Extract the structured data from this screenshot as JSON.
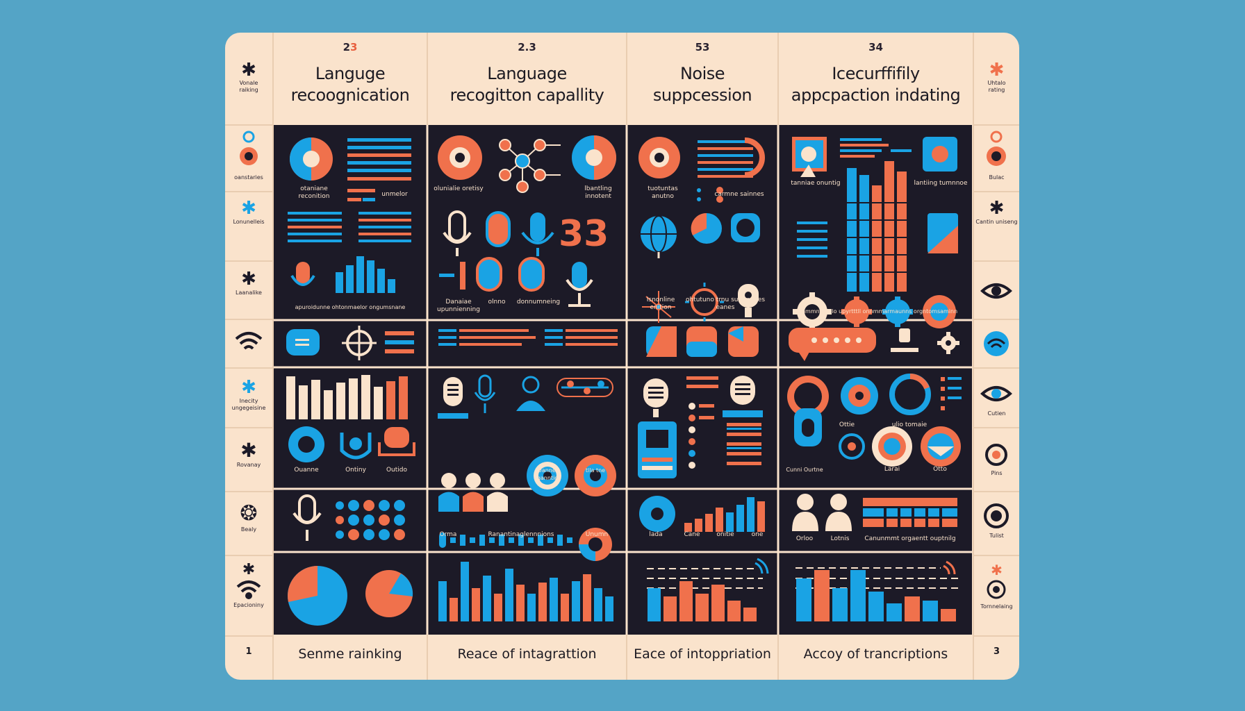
{
  "colors": {
    "background": "#54a4c6",
    "board": "#fae3cc",
    "panel": "#1c1a27",
    "blue": "#1aa3e4",
    "orange": "#f0714c",
    "cream": "#fae3cc"
  },
  "columns": [
    {
      "number_prefix": "2",
      "number_accent": "3",
      "title_line1": "Languge",
      "title_line2": "recoognication",
      "footer": "Senme rainking"
    },
    {
      "number_prefix": "2.3",
      "number_accent": "",
      "title_line1": "Language",
      "title_line2": "recogitton capallity",
      "footer": "Reace of intagrattion"
    },
    {
      "number_prefix": "53",
      "number_accent": "",
      "title_line1": "Noise",
      "title_line2": "suppcession",
      "footer": "Eace of intoppriation"
    },
    {
      "number_prefix": "34",
      "number_accent": "",
      "title_line1": "Icecurffifily",
      "title_line2": "appcpaction indating",
      "footer": "Accoy of trancriptions"
    }
  ],
  "left_side": {
    "top_label": [
      "Vonale",
      "raiking"
    ],
    "items": [
      {
        "icon": "gear-icon",
        "label": "oanstaries"
      },
      {
        "icon": "gear-icon",
        "label": "Lonunelleis"
      },
      {
        "icon": "gear-icon",
        "label": "Laanalike"
      },
      {
        "icon": "wifi-icon",
        "label": ""
      },
      {
        "icon": "gear-icon",
        "label": "Inecity ungegeisine"
      },
      {
        "icon": "gear-icon",
        "label": "Rovanay"
      },
      {
        "icon": "gear-icon",
        "label": "Bealy"
      },
      {
        "icon": "wifi-icon",
        "label": "Epacioniny"
      }
    ],
    "footer_number": "1"
  },
  "right_side": {
    "top_label": [
      "Uhtalo",
      "rating"
    ],
    "items": [
      {
        "icon": "target-icon",
        "label": "Bulac"
      },
      {
        "icon": "gear-icon",
        "label": "Cantin uniseng"
      },
      {
        "icon": "eye-icon",
        "label": ""
      },
      {
        "icon": "wifi-icon",
        "label": ""
      },
      {
        "icon": "eye-icon",
        "label": "Cutien"
      },
      {
        "icon": "target-icon",
        "label": "Pins"
      },
      {
        "icon": "target-icon",
        "label": "Tulist"
      },
      {
        "icon": "target-icon",
        "label": "Tornnelaing"
      }
    ],
    "footer_number": "3"
  },
  "captions": {
    "c1r1a": "otaniane reconition",
    "c1r1b": "unmelor",
    "c1r1c": "apuroidunne ohtonmaelor ongumsnane",
    "c1r4a": "Ouanne",
    "c1r4b": "Ontiny",
    "c1r4c": "Outido",
    "c2r1a": "olunialie oretisy",
    "c2r1b": "lbantling innotent",
    "c2r1c": "Danaiae upunnienning",
    "c2r1d": "olnno",
    "c2r1e": "donnumneing",
    "c2r4a": "Uannel ganntio",
    "c2r4b": "tlla tne",
    "c2r5a": "Orma",
    "c2r5b": "Ranantinaglennnions",
    "c2r5c": "Unumn",
    "c3r1a": "tuotuntas anutno",
    "c3r1b": "carmne sainnes",
    "c3r1c": "Isnonline enition",
    "c3r1d": "ohtutuno trnu sunnnones eanes",
    "c3r5a": "lada",
    "c3r5b": "Cane",
    "c3r5c": "onitie",
    "c3r5d": "one",
    "c4r1a": "tanniae onuntig",
    "c4r1b": "lantiing tumnnoe",
    "c4r1c": "unnmmntinnilo upyrtttll onnmmarmaunns orgntomsaminn",
    "c4r4a": "Ottie",
    "c4r4b": "ulio tomaie",
    "c4r4c": "Cunni Ourtne",
    "c4r4d": "Larai",
    "c4r4e": "Otto",
    "c4r5a": "Orloo",
    "c4r5b": "Lotnis",
    "c4r5c": "Canunmmt orgaentt ouptnilg",
    "big_number": "33"
  }
}
